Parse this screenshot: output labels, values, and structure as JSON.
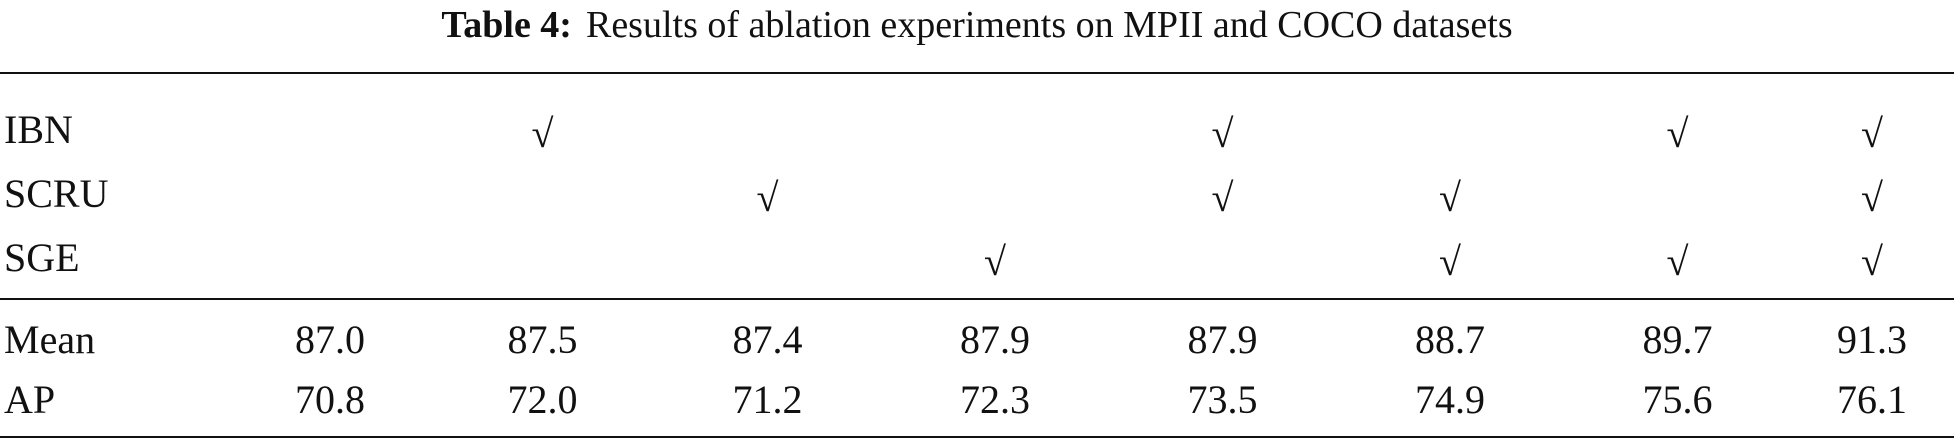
{
  "caption": {
    "label": "Table 4:",
    "text": "Results of ablation experiments on MPII and COCO datasets"
  },
  "check_glyph": "√",
  "modules": [
    {
      "label": "IBN",
      "checks": [
        "",
        "√",
        "",
        "",
        "√",
        "",
        "√",
        "√"
      ]
    },
    {
      "label": "SCRU",
      "checks": [
        "",
        "",
        "√",
        "",
        "√",
        "√",
        "",
        "√"
      ]
    },
    {
      "label": "SGE",
      "checks": [
        "",
        "",
        "",
        "√",
        "",
        "√",
        "√",
        "√"
      ]
    }
  ],
  "metrics": [
    {
      "label": "Mean",
      "values": [
        "87.0",
        "87.5",
        "87.4",
        "87.9",
        "87.9",
        "88.7",
        "89.7",
        "91.3"
      ]
    },
    {
      "label": "AP",
      "values": [
        "70.8",
        "72.0",
        "71.2",
        "72.3",
        "73.5",
        "74.9",
        "75.6",
        "76.1"
      ]
    }
  ]
}
